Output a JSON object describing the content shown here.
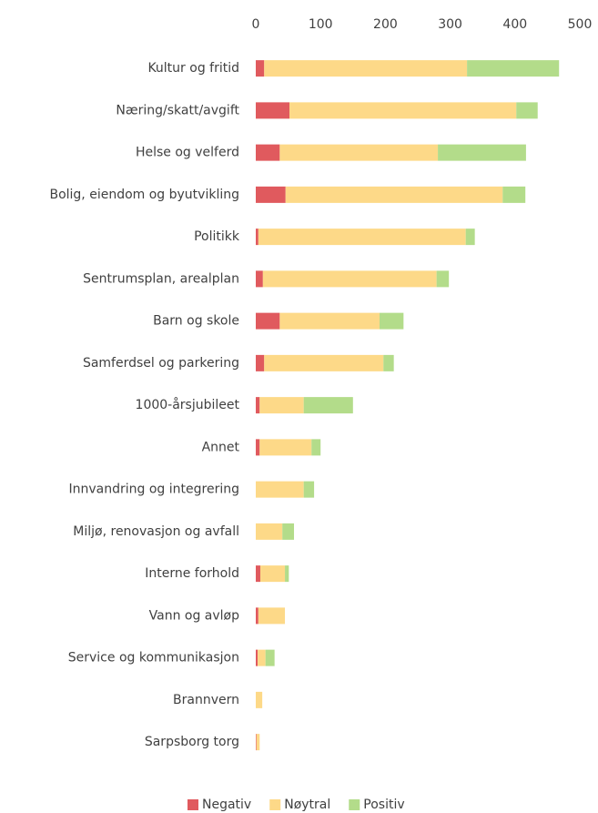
{
  "chart_data": {
    "type": "stacked-horizontal-bar",
    "categories": [
      "Kultur og fritid",
      "Næring/skatt/avgift",
      "Helse og velferd",
      "Bolig, eiendom og byutvikling",
      "Politikk",
      "Sentrumsplan, arealplan",
      "Barn og skole",
      "Samferdsel og parkering",
      "1000-årsjubileet",
      "Annet",
      "Innvandring og integrering",
      "Miljø, renovasjon og avfall",
      "Interne forhold",
      "Vann og avløp",
      "Service og kommunikasjon",
      "Brannvern",
      "Sarpsborg torg"
    ],
    "series": [
      {
        "name": "Negativ",
        "color": "#e05a5e",
        "values": [
          13,
          52,
          37,
          46,
          4,
          11,
          37,
          13,
          6,
          6,
          0,
          0,
          7,
          4,
          3,
          0,
          1
        ]
      },
      {
        "name": "Nøytral",
        "color": "#fdd988",
        "values": [
          313,
          350,
          244,
          335,
          320,
          268,
          154,
          184,
          68,
          80,
          74,
          41,
          38,
          41,
          12,
          10,
          5
        ]
      },
      {
        "name": "Positiv",
        "color": "#b3dc8a",
        "values": [
          142,
          33,
          136,
          35,
          14,
          19,
          37,
          16,
          76,
          14,
          16,
          18,
          6,
          0,
          14,
          0,
          0
        ]
      }
    ],
    "xlim": [
      0,
      500
    ],
    "xticks": [
      0,
      100,
      200,
      300,
      400,
      500
    ],
    "legend": "bottom"
  }
}
